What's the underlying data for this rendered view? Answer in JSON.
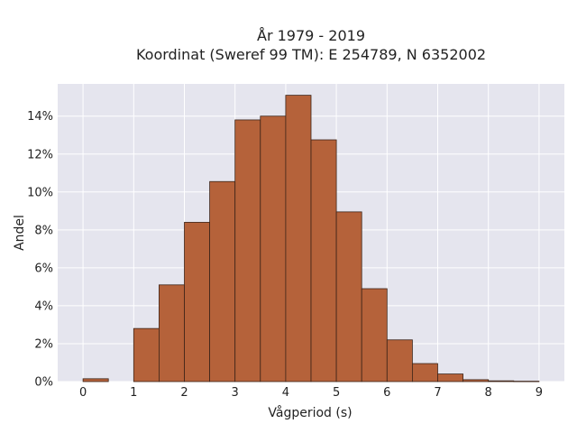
{
  "chart_data": {
    "type": "bar",
    "title_line1": "År 1979 - 2019",
    "title_line2": "Koordinat (Sweref 99 TM): E 254789, N 6352002",
    "xlabel": "Vågperiod (s)",
    "ylabel": "Andel",
    "bin_width": 0.5,
    "bin_starts": [
      0,
      0.5,
      1,
      1.5,
      2,
      2.5,
      3,
      3.5,
      4,
      4.5,
      5,
      5.5,
      6,
      6.5,
      7,
      7.5,
      8,
      8.5
    ],
    "values": [
      0.15,
      0,
      2.8,
      5.1,
      8.4,
      10.55,
      13.8,
      14.0,
      15.1,
      12.75,
      8.95,
      4.9,
      2.2,
      0.95,
      0.4,
      0.1,
      0.04,
      0.02
    ],
    "xlim": [
      -0.5,
      9.5
    ],
    "ylim": [
      0,
      15.7
    ],
    "x_ticks": [
      0,
      1,
      2,
      3,
      4,
      5,
      6,
      7,
      8,
      9
    ],
    "x_tick_labels": [
      "0",
      "1",
      "2",
      "3",
      "4",
      "5",
      "6",
      "7",
      "8",
      "9"
    ],
    "y_ticks": [
      0,
      2,
      4,
      6,
      8,
      10,
      12,
      14
    ],
    "y_tick_labels": [
      "0%",
      "2%",
      "4%",
      "6%",
      "8%",
      "10%",
      "12%",
      "14%"
    ],
    "grid": true,
    "colors": {
      "bar_fill": "#b5623a",
      "bar_stroke": "#3d2418",
      "plot_bg": "#e5e5ee",
      "grid": "#ffffff"
    }
  }
}
